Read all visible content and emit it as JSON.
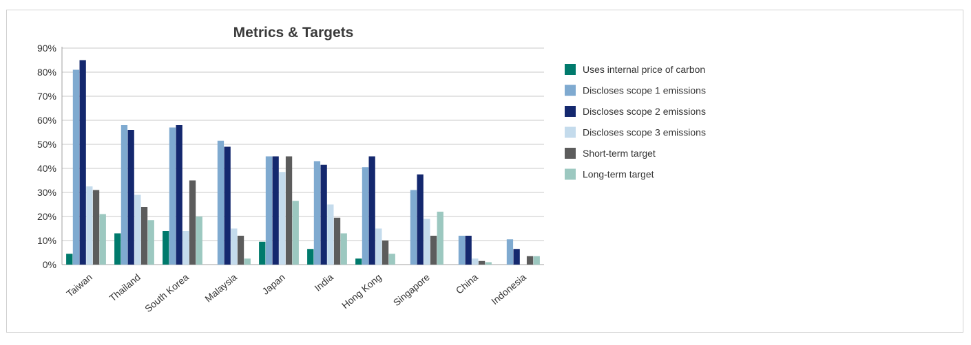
{
  "chart_data": {
    "type": "bar",
    "title": "Metrics & Targets",
    "xlabel": "",
    "ylabel": "",
    "ylim": [
      0,
      90
    ],
    "yticks": [
      "0%",
      "10%",
      "20%",
      "30%",
      "40%",
      "50%",
      "60%",
      "70%",
      "80%",
      "90%"
    ],
    "grid": true,
    "legend_position": "right",
    "categories": [
      "Taiwan",
      "Thailand",
      "South Korea",
      "Malaysia",
      "Japan",
      "India",
      "Hong Kong",
      "Singapore",
      "China",
      "Indonesia"
    ],
    "series": [
      {
        "name": "Uses internal price of carbon",
        "color": "#007a6c",
        "values": [
          4.5,
          13,
          14,
          0,
          9.5,
          6.5,
          2.5,
          0,
          0,
          0
        ]
      },
      {
        "name": "Discloses scope 1 emissions",
        "color": "#7faad0",
        "values": [
          81,
          58,
          57,
          51.5,
          45,
          43,
          40.5,
          31,
          12,
          10.5
        ]
      },
      {
        "name": "Discloses scope 2 emissions",
        "color": "#14286e",
        "values": [
          85,
          56,
          58,
          49,
          45,
          41.5,
          45,
          37.5,
          12,
          6.5
        ]
      },
      {
        "name": "Discloses scope 3 emissions",
        "color": "#c4dbec",
        "values": [
          32.5,
          29,
          14,
          15,
          38.5,
          25,
          15,
          19,
          2.5,
          0
        ]
      },
      {
        "name": "Short-term target",
        "color": "#5c5c5c",
        "values": [
          31,
          24,
          35,
          12,
          45,
          19.5,
          10,
          12,
          1.5,
          3.5
        ]
      },
      {
        "name": "Long-term target",
        "color": "#9cc8c0",
        "values": [
          21,
          18.5,
          20,
          2.5,
          26.5,
          13,
          4.5,
          22,
          1,
          3.5
        ]
      }
    ]
  }
}
